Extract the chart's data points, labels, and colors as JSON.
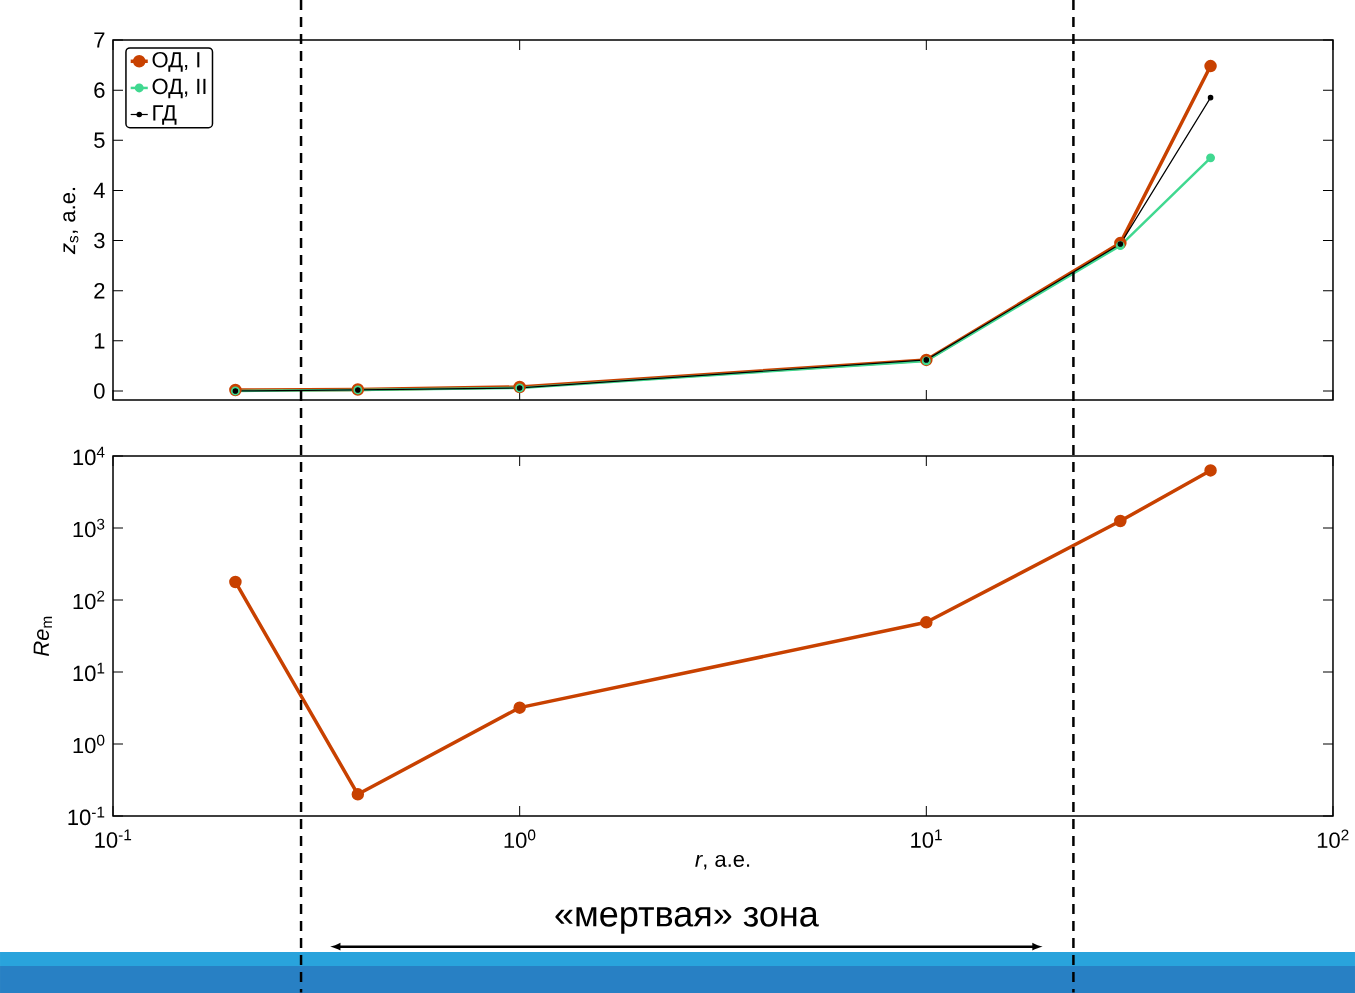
{
  "chart_data": [
    {
      "type": "line",
      "ylabel": "*z*$_{s}$, а.е.",
      "x": [
        0.2,
        0.4,
        1,
        10,
        30,
        50
      ],
      "series": [
        {
          "name": "ОД, I",
          "color": "#c84100",
          "values": [
            0.02,
            0.03,
            0.08,
            0.62,
            2.95,
            6.48
          ]
        },
        {
          "name": "ОД, II",
          "color": "#40d890",
          "values": [
            0.0,
            0.02,
            0.06,
            0.6,
            2.9,
            4.65
          ]
        },
        {
          "name": "ГД",
          "color": "#000000",
          "values": [
            0.0,
            0.02,
            0.06,
            0.62,
            2.93,
            5.85
          ]
        }
      ],
      "log": "x",
      "xlim": [
        0.1,
        100
      ],
      "xticks": [
        {
          "value": 0.1,
          "label": null
        },
        {
          "value": 1,
          "label": null
        },
        {
          "value": 10,
          "label": null
        },
        {
          "value": 100,
          "label": null
        }
      ],
      "ylim": [
        -0.18,
        7
      ],
      "yticks": [
        0,
        1,
        2,
        3,
        4,
        5,
        6,
        7
      ],
      "tick_labels": "y",
      "legend": "top left",
      "marker": "circle",
      "grid": false,
      "ref_lines": [
        {
          "axis": "x",
          "value": 0.29,
          "line_style": "dashed"
        },
        {
          "axis": "x",
          "value": 23,
          "line_style": "dashed"
        }
      ]
    },
    {
      "type": "line",
      "xlabel": "*r*, а.е.",
      "ylabel": "*Re*$_{m}$",
      "x": [
        0.2,
        0.4,
        1,
        10,
        30,
        50
      ],
      "series": [
        {
          "color": "#c84100",
          "values": [
            178,
            0.2,
            3.2,
            49,
            1250,
            6300
          ]
        }
      ],
      "log": "xy",
      "xlim": [
        0.1,
        100
      ],
      "xticks": [
        {
          "value": 0.1,
          "label": "10$^{-1}$"
        },
        {
          "value": 1,
          "label": "10$^{0}$"
        },
        {
          "value": 10,
          "label": "10$^{1}$"
        },
        {
          "value": 100,
          "label": "10$^{2}$"
        }
      ],
      "ylim": [
        0.1,
        10000
      ],
      "yticks": [
        {
          "value": 0.1,
          "label": "10$^{-1}$"
        },
        {
          "value": 1,
          "label": "10$^{0}$"
        },
        {
          "value": 10,
          "label": "10$^{1}$"
        },
        {
          "value": 100,
          "label": "10$^{2}$"
        },
        {
          "value": 1000,
          "label": "10$^{3}$"
        },
        {
          "value": 10000,
          "label": "10$^{4}$"
        }
      ],
      "marker": "circle",
      "grid": false,
      "annotations": [
        "«мертвая» зона"
      ],
      "ref_lines": [
        {
          "axis": "x",
          "value": 0.29,
          "line_style": "dashed"
        },
        {
          "axis": "x",
          "value": 23,
          "line_style": "dashed"
        }
      ]
    }
  ]
}
